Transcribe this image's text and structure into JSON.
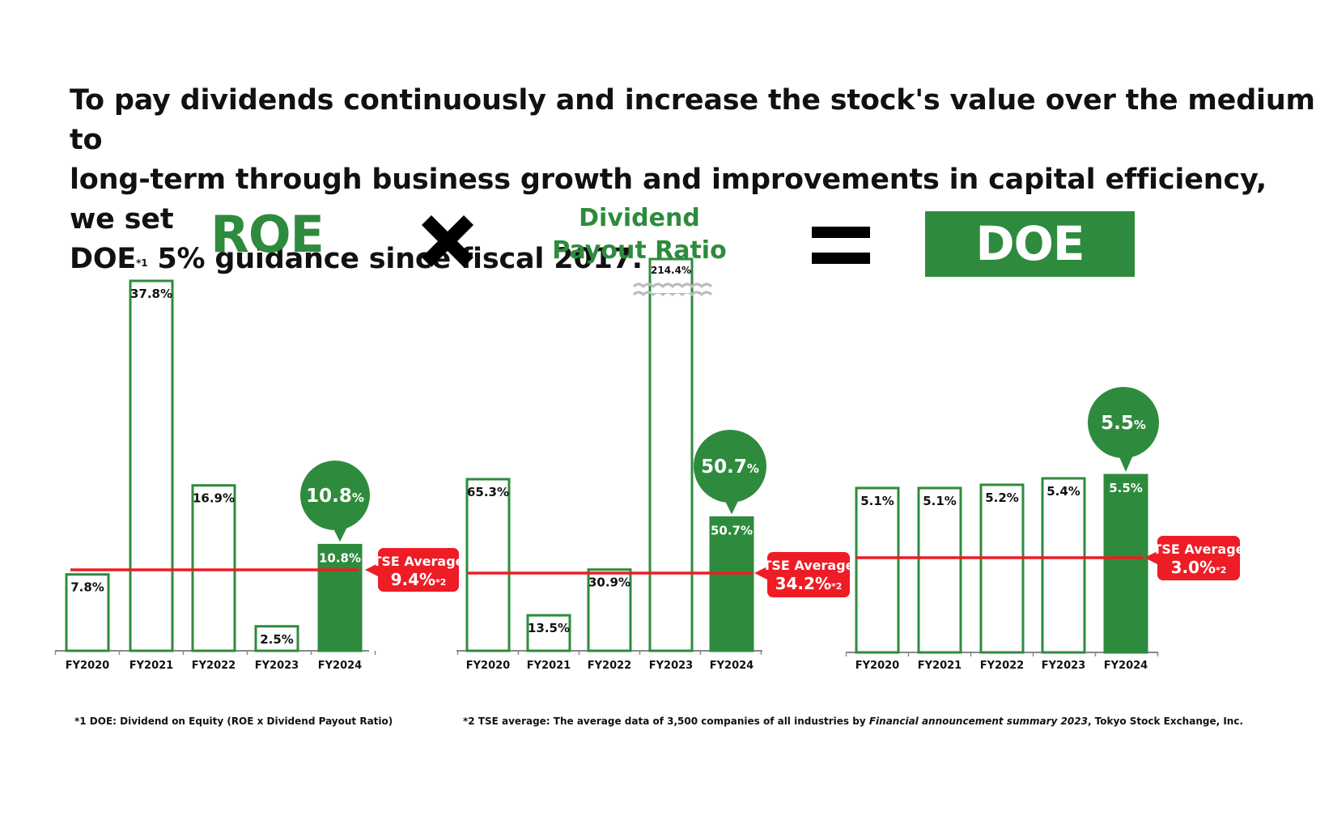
{
  "headline": {
    "line1": "To pay dividends continuously and increase the stock's value over the medium to",
    "line2": "long-term through business growth and improvements in capital efficiency, we set",
    "line3_start": "DOE",
    "line3_sup": "*1",
    "line3_end": " 5% guidance since fiscal 2017."
  },
  "equation": {
    "roe_label": "ROE",
    "dpr_label_line1": "Dividend",
    "dpr_label_line2": "Payout Ratio",
    "doe_label": "DOE",
    "times_icon": "multiply-icon",
    "equals_icon": "equals-icon"
  },
  "colors": {
    "green": "#2e8b3d",
    "red": "#ee1c25",
    "white": "#ffffff"
  },
  "chart_data": [
    {
      "type": "bar",
      "name": "ROE",
      "categories": [
        "FY2020",
        "FY2021",
        "FY2022",
        "FY2023",
        "FY2024"
      ],
      "values": [
        7.8,
        37.8,
        16.9,
        2.5,
        10.8
      ],
      "labels": [
        "7.8%",
        "37.8%",
        "16.9%",
        "2.5%",
        "10.8%"
      ],
      "highlight_index": 4,
      "highlight_bubble": {
        "value": "10.8",
        "unit": "%"
      },
      "reference": {
        "value": 9.4,
        "title": "TSE Average",
        "label": "9.4%",
        "note": "*2"
      },
      "ylim": [
        0,
        38
      ]
    },
    {
      "type": "bar",
      "name": "Dividend Payout Ratio",
      "categories": [
        "FY2020",
        "FY2021",
        "FY2022",
        "FY2023",
        "FY2024"
      ],
      "values": [
        65.3,
        13.5,
        30.9,
        214.4,
        50.7
      ],
      "labels": [
        "65.3%",
        "13.5%",
        "30.9%",
        "214.4%",
        "50.7%"
      ],
      "highlight_index": 4,
      "highlight_bubble": {
        "value": "50.7",
        "unit": "%"
      },
      "reference": {
        "value": 34.2,
        "title": "TSE Average",
        "label": "34.2%",
        "note": "*2"
      },
      "axis_break_index": 3,
      "ylim": [
        0,
        220
      ]
    },
    {
      "type": "bar",
      "name": "DOE",
      "categories": [
        "FY2020",
        "FY2021",
        "FY2022",
        "FY2023",
        "FY2024"
      ],
      "values": [
        5.1,
        5.1,
        5.2,
        5.4,
        5.5
      ],
      "labels": [
        "5.1%",
        "5.1%",
        "5.2%",
        "5.4%",
        "5.5%"
      ],
      "highlight_index": 4,
      "highlight_bubble": {
        "value": "5.5",
        "unit": "%"
      },
      "reference": {
        "value": 3.0,
        "title": "TSE Average",
        "label": "3.0%",
        "note": "*2"
      },
      "ylim": [
        0,
        6
      ]
    }
  ],
  "footnotes": {
    "note1": "*1  DOE: Dividend on Equity (ROE x Dividend Payout Ratio)",
    "note2_start": "*2  TSE average: The average data of 3,500 companies of all industries by ",
    "note2_em": "Financial announcement summary 2023",
    "note2_end": ", Tokyo Stock Exchange, Inc."
  }
}
